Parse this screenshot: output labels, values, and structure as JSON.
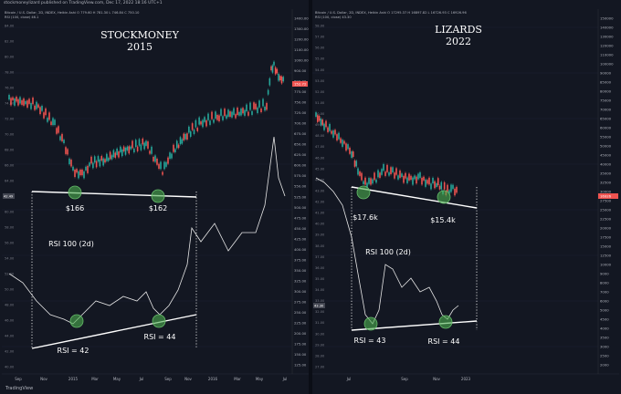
{
  "header": {
    "published": "stockmoneylizard published on TradingView.com, Dec 17, 2022 18:16 UTC+1"
  },
  "footer": {
    "brand": "TradingView"
  },
  "charts": [
    {
      "title_line1": "STOCKMONEY",
      "title_line2": "2015",
      "legend_symbol": "Bitcoin / U.S. Dollar, 2D, INDEX, Heikin Ashi",
      "legend_values": [
        "O 779.60",
        "H 781.30",
        "L 746.84",
        "C 750.10"
      ],
      "legend_rsi": "RSI (100, close) 46.1",
      "price_label": "152.72",
      "rsi_label": "42.49",
      "y_ticks_price": [
        "1400.00",
        "1300.00",
        "1200.00",
        "1100.00",
        "1000.00",
        "900.00",
        "800.00",
        "775.00",
        "750.00",
        "725.00",
        "700.00",
        "675.00",
        "650.00",
        "625.00",
        "600.00",
        "575.00",
        "550.00",
        "525.00",
        "500.00",
        "475.00",
        "450.00",
        "425.00",
        "400.00",
        "375.00",
        "350.00",
        "325.00",
        "300.00",
        "275.00",
        "250.00",
        "225.00",
        "200.00",
        "175.00",
        "150.00",
        "125.00"
      ],
      "y_ticks_rsi": [
        "84.00",
        "82.00",
        "80.00",
        "78.00",
        "76.00",
        "74.00",
        "72.00",
        "70.00",
        "68.00",
        "66.00",
        "64.00",
        "62.00",
        "60.00",
        "58.00",
        "56.00",
        "54.00",
        "52.00",
        "50.00",
        "48.00",
        "46.00",
        "44.00",
        "42.00",
        "40.00"
      ],
      "x_ticks": [
        "Sep",
        "Nov",
        "2015",
        "Mar",
        "May",
        "Jul",
        "Sep",
        "Nov",
        "2016",
        "Mar",
        "May",
        "Jul"
      ],
      "low_labels": [
        "$166",
        "$162"
      ],
      "rsi_title": "RSI 100 (2d)",
      "rsi_labels": [
        "RSI = 42",
        "RSI = 44"
      ]
    },
    {
      "title_line1": "LIZARDS",
      "title_line2": "2022",
      "legend_symbol": "Bitcoin / U.S. Dollar, 2D, INDEX, Heikin Ashi",
      "legend_values": [
        "O 17295.37",
        "H 16897.82",
        "L 16726.93",
        "C 16926.96"
      ],
      "legend_rsi": "RSI (100, close) 43.30",
      "price_label": "16926",
      "rsi_label": "43.30",
      "y_ticks_price": [
        "150000",
        "140000",
        "130000",
        "120000",
        "110000",
        "100000",
        "90000",
        "85000",
        "80000",
        "75000",
        "70000",
        "65000",
        "60000",
        "55000",
        "50000",
        "45000",
        "40000",
        "35000",
        "32500",
        "30000",
        "27500",
        "25000",
        "22500",
        "20000",
        "17500",
        "15000",
        "12500",
        "10000",
        "9000",
        "8000",
        "7000",
        "6000",
        "5000",
        "4500",
        "4000",
        "3500",
        "3000",
        "2500",
        "2000"
      ],
      "y_ticks_rsi": [
        "58.00",
        "57.00",
        "56.00",
        "55.00",
        "54.00",
        "53.00",
        "52.00",
        "51.00",
        "50.00",
        "49.00",
        "48.00",
        "47.00",
        "46.00",
        "45.00",
        "44.00",
        "43.00",
        "42.00",
        "41.00",
        "40.00",
        "39.00",
        "38.00",
        "37.00",
        "36.00",
        "35.00",
        "34.00",
        "33.00",
        "32.00",
        "31.00",
        "30.00",
        "29.00",
        "28.00",
        "27.00"
      ],
      "x_ticks": [
        "Jul",
        "Sep",
        "Nov",
        "2023"
      ],
      "low_labels": [
        "$17.6k",
        "$15.4k"
      ],
      "rsi_title": "RSI 100 (2d)",
      "rsi_labels": [
        "RSI = 43",
        "RSI = 44"
      ]
    }
  ],
  "chart_data": [
    {
      "type": "line",
      "title": "STOCKMONEY 2015",
      "xlabel": "",
      "ylabel": "",
      "series": [
        {
          "name": "",
          "x": [
            "2014-08",
            "2014-10",
            "2014-12",
            "2015-01",
            "2015-03",
            "2015-05",
            "2015-07",
            "2015-08",
            "2015-10",
            "2015-12",
            "2016-02",
            "2016-04",
            "2016-06",
            "2016-07"
          ],
          "values": [
            500,
            380,
            330,
            200,
            270,
            240,
            290,
            210,
            250,
            420,
            400,
            420,
            720,
            650
          ]
        },
        {
          "name": "RSI 100 (2d)",
          "x": [
            "2014-08",
            "2014-10",
            "2014-12",
            "2015-01",
            "2015-03",
            "2015-05",
            "2015-07",
            "2015-08",
            "2015-10",
            "2015-12",
            "2016-02",
            "2016-04",
            "2016-06",
            "2016-07"
          ],
          "values": [
            50,
            47,
            44,
            42,
            45,
            46,
            48,
            44,
            47,
            56,
            55,
            56,
            71,
            62
          ]
        }
      ],
      "annotations": [
        "$166",
        "$162",
        "RSI = 42",
        "RSI = 44"
      ]
    },
    {
      "type": "line",
      "title": "LIZARDS 2022",
      "xlabel": "",
      "ylabel": "",
      "series": [
        {
          "name": "",
          "x": [
            "2022-05",
            "2022-06",
            "2022-07",
            "2022-08",
            "2022-09",
            "2022-10",
            "2022-11",
            "2022-12"
          ],
          "values": [
            33000,
            20000,
            21000,
            23000,
            19500,
            19500,
            16000,
            17200
          ]
        },
        {
          "name": "RSI 100 (2d)",
          "x": [
            "2022-05",
            "2022-06",
            "2022-07",
            "2022-08",
            "2022-09",
            "2022-10",
            "2022-11",
            "2022-12"
          ],
          "values": [
            53,
            43,
            44,
            46,
            44,
            45,
            44,
            45
          ]
        }
      ],
      "annotations": [
        "$17.6k",
        "$15.4k",
        "RSI = 43",
        "RSI = 44"
      ]
    }
  ]
}
